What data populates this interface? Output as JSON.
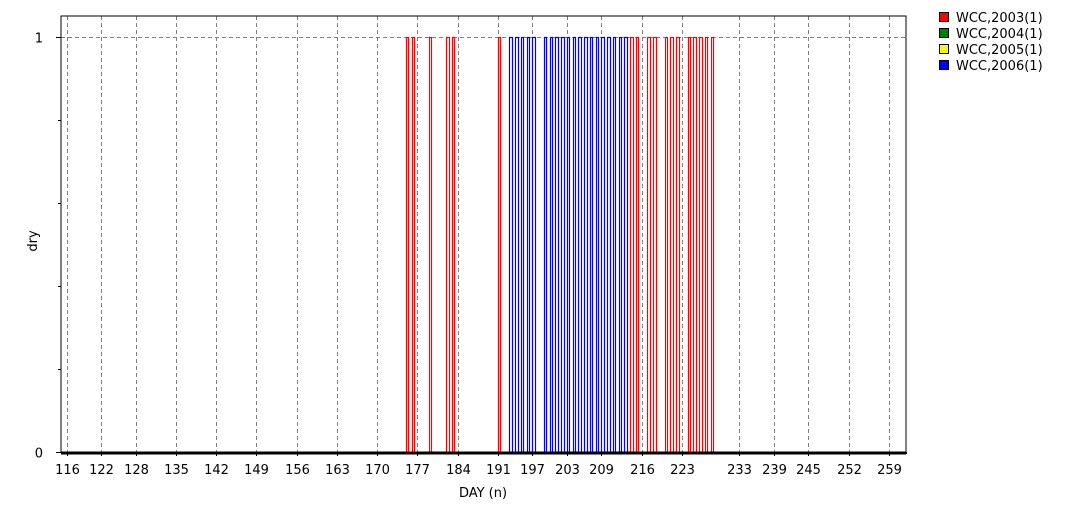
{
  "chart_data": {
    "type": "line",
    "xlabel": "DAY (n)",
    "ylabel": "dry",
    "xlim": [
      115,
      262
    ],
    "ylim": [
      0,
      1.05
    ],
    "x_ticks": [
      116,
      122,
      128,
      135,
      142,
      149,
      156,
      163,
      170,
      177,
      184,
      191,
      197,
      203,
      209,
      216,
      223,
      233,
      239,
      245,
      252,
      259
    ],
    "y_ticks": [
      0,
      1
    ],
    "grid": true,
    "legend_position": "top-right, outside plot",
    "series": [
      {
        "name": "WCC,2003(1)",
        "color": "#ff0000",
        "dry_days": [
          175,
          176,
          179,
          182,
          183,
          191,
          214,
          215,
          217,
          218,
          220,
          221,
          222,
          224,
          225,
          226,
          227,
          228
        ]
      },
      {
        "name": "WCC,2004(1)",
        "color": "#008000",
        "dry_days": []
      },
      {
        "name": "WCC,2005(1)",
        "color": "#ffff00",
        "dry_days": []
      },
      {
        "name": "WCC,2006(1)",
        "color": "#0000ff",
        "dry_days": [
          193,
          194,
          195,
          196,
          197,
          199,
          200,
          201,
          202,
          203,
          204,
          205,
          206,
          207,
          208,
          209,
          210,
          211,
          212,
          213
        ]
      }
    ]
  }
}
